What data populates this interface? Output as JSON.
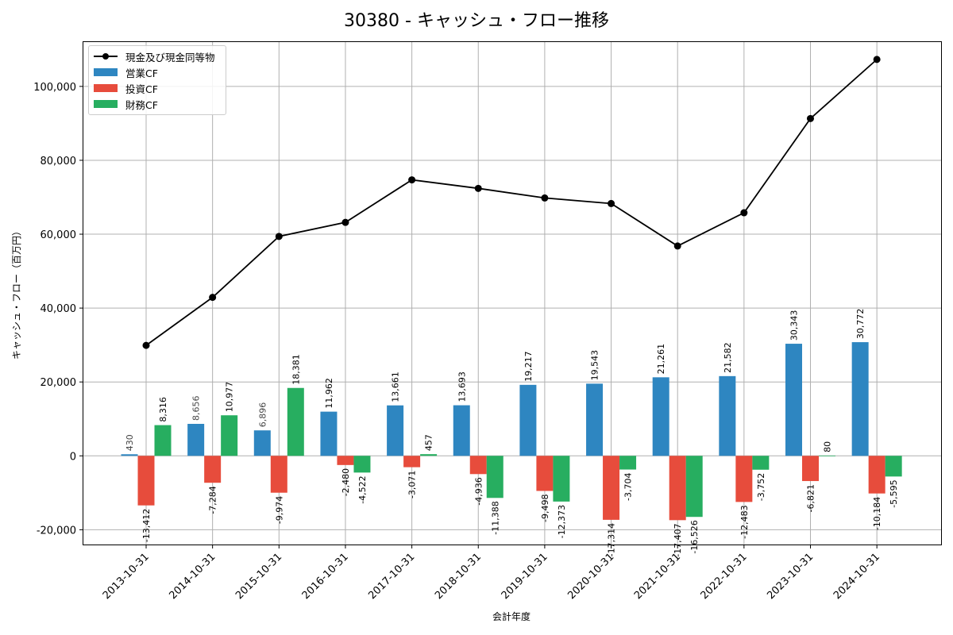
{
  "chart_data": {
    "type": "bar",
    "title": "30380 - キャッシュ・フロー推移",
    "xlabel": "会計年度",
    "ylabel": "キャッシュ・フロー（百万円）",
    "ylim": [
      -24000,
      112000
    ],
    "yticks": [
      -20000,
      0,
      20000,
      40000,
      60000,
      80000,
      100000
    ],
    "ytick_labels": [
      "-20,000",
      "0",
      "20,000",
      "40,000",
      "60,000",
      "80,000",
      "100,000"
    ],
    "grid": true,
    "legend_position": "top-left",
    "categories": [
      "2013-10-31",
      "2014-10-31",
      "2015-10-31",
      "2016-10-31",
      "2017-10-31",
      "2018-10-31",
      "2019-10-31",
      "2020-10-31",
      "2021-10-31",
      "2022-10-31",
      "2023-10-31",
      "2024-10-31"
    ],
    "series": [
      {
        "name": "営業CF",
        "kind": "bar",
        "color": "#2e86c1",
        "values": [
          430,
          8656,
          6896,
          11962,
          13661,
          13693,
          19217,
          19543,
          21261,
          21582,
          30343,
          30772
        ],
        "labels": [
          "430",
          "8,656",
          "6,896",
          "11,962",
          "13,661",
          "13,693",
          "19,217",
          "19,543",
          "21,261",
          "21,582",
          "30,343",
          "30,772"
        ]
      },
      {
        "name": "投資CF",
        "kind": "bar",
        "color": "#e74c3c",
        "values": [
          -13412,
          -7284,
          -9974,
          -2480,
          -3071,
          -4936,
          -9498,
          -17314,
          -17407,
          -12483,
          -6821,
          -10184
        ],
        "labels": [
          "-13,412",
          "-7,284",
          "-9,974",
          "-2,480",
          "-3,071",
          "-4,936",
          "-9,498",
          "-17,314",
          "-17,407",
          "-12,483",
          "-6,821",
          "-10,184"
        ]
      },
      {
        "name": "財務CF",
        "kind": "bar",
        "color": "#27ae60",
        "values": [
          8316,
          10977,
          18381,
          -4522,
          457,
          -11388,
          -12373,
          -3704,
          -16526,
          -3752,
          80,
          -5595
        ],
        "labels": [
          "8,316",
          "10,977",
          "18,381",
          "-4,522",
          "457",
          "-11,388",
          "-12,373",
          "-3,704",
          "-16,526",
          "-3,752",
          "80",
          "-5,595"
        ]
      },
      {
        "name": "現金及び現金同等物",
        "kind": "line",
        "color": "#000000",
        "values": [
          29900,
          42900,
          59400,
          63200,
          74700,
          72400,
          69800,
          68300,
          56800,
          65800,
          91300,
          107300
        ]
      }
    ]
  }
}
